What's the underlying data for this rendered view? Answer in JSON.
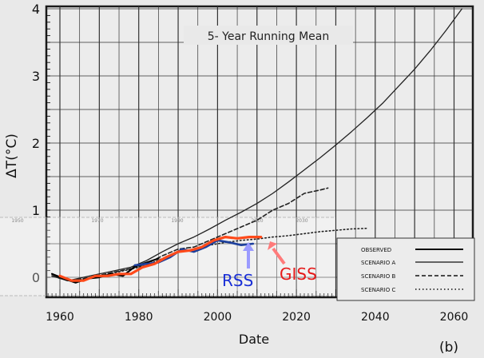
{
  "chart_data": {
    "type": "line",
    "title": "5- Year Running Mean",
    "xlabel": "Date",
    "ylabel": "ΔT(°C)",
    "panel_label": "(b)",
    "xlim": [
      1955,
      2065
    ],
    "ylim": [
      -0.35,
      4
    ],
    "x_ticks": [
      1960,
      1980,
      2000,
      2020,
      2040,
      2060
    ],
    "y_ticks": [
      0,
      1,
      2,
      3,
      4
    ],
    "grid": true,
    "legend_position": "bottom-right",
    "legend": [
      "OBSERVED",
      "SCENARIO A",
      "SCENARIO B",
      "SCENARIO C"
    ],
    "overlay_labels": {
      "rss": "RSS",
      "giss": "GISS"
    },
    "overlay_inset_ticks": [
      "1950",
      "1970",
      "1990",
      "2010",
      "2030"
    ],
    "series": [
      {
        "name": "OBSERVED",
        "color": "#000000",
        "style": "solid",
        "x": [
          1958,
          1961,
          1964,
          1967,
          1970,
          1973,
          1976,
          1979,
          1982,
          1985
        ],
        "y": [
          0.05,
          -0.02,
          -0.08,
          -0.02,
          0.0,
          0.05,
          0.02,
          0.16,
          0.22,
          0.28
        ]
      },
      {
        "name": "SCENARIO A",
        "color": "#222222",
        "style": "solid",
        "x": [
          1958,
          1962,
          1966,
          1970,
          1974,
          1978,
          1982,
          1986,
          1990,
          1994,
          1998,
          2002,
          2006,
          2010,
          2014,
          2018,
          2022,
          2026,
          2030,
          2034,
          2038,
          2042,
          2046,
          2050,
          2054,
          2058,
          2062
        ],
        "y": [
          0.02,
          -0.05,
          0.0,
          0.05,
          0.1,
          0.15,
          0.25,
          0.38,
          0.5,
          0.6,
          0.72,
          0.85,
          0.97,
          1.1,
          1.25,
          1.42,
          1.6,
          1.78,
          1.97,
          2.17,
          2.38,
          2.6,
          2.85,
          3.1,
          3.38,
          3.68,
          4.0
        ]
      },
      {
        "name": "SCENARIO B",
        "color": "#222222",
        "style": "dashed",
        "x": [
          1958,
          1962,
          1966,
          1970,
          1974,
          1978,
          1982,
          1986,
          1990,
          1994,
          1998,
          2002,
          2006,
          2010,
          2014,
          2018,
          2022,
          2026,
          2028
        ],
        "y": [
          0.02,
          -0.05,
          -0.02,
          0.03,
          0.08,
          0.13,
          0.2,
          0.32,
          0.42,
          0.45,
          0.55,
          0.65,
          0.75,
          0.85,
          1.0,
          1.1,
          1.25,
          1.3,
          1.33
        ]
      },
      {
        "name": "SCENARIO C",
        "color": "#222222",
        "style": "dotted",
        "x": [
          1958,
          1962,
          1966,
          1970,
          1974,
          1978,
          1982,
          1986,
          1990,
          1994,
          1998,
          2002,
          2006,
          2010,
          2014,
          2018,
          2022,
          2026,
          2030,
          2034,
          2038
        ],
        "y": [
          0.02,
          -0.05,
          -0.03,
          0.02,
          0.07,
          0.12,
          0.18,
          0.28,
          0.38,
          0.42,
          0.48,
          0.52,
          0.55,
          0.57,
          0.6,
          0.62,
          0.65,
          0.68,
          0.7,
          0.72,
          0.73
        ]
      },
      {
        "name": "GISS",
        "color": "#ff4a1a",
        "style": "solid",
        "x": [
          1960,
          1963,
          1966,
          1969,
          1972,
          1975,
          1978,
          1981,
          1984,
          1987,
          1990,
          1993,
          1996,
          1999,
          2002,
          2005,
          2008,
          2011
        ],
        "y": [
          0.02,
          -0.05,
          -0.05,
          0.02,
          0.02,
          0.05,
          0.05,
          0.15,
          0.2,
          0.3,
          0.38,
          0.4,
          0.45,
          0.55,
          0.6,
          0.58,
          0.6,
          0.6
        ]
      },
      {
        "name": "RSS",
        "color": "#1c3f9c",
        "style": "solid",
        "x": [
          1979,
          1982,
          1985,
          1988,
          1991,
          1994,
          1997,
          2000,
          2003,
          2006,
          2009
        ],
        "y": [
          0.18,
          0.2,
          0.22,
          0.3,
          0.42,
          0.38,
          0.45,
          0.55,
          0.52,
          0.48,
          0.5
        ]
      }
    ]
  }
}
